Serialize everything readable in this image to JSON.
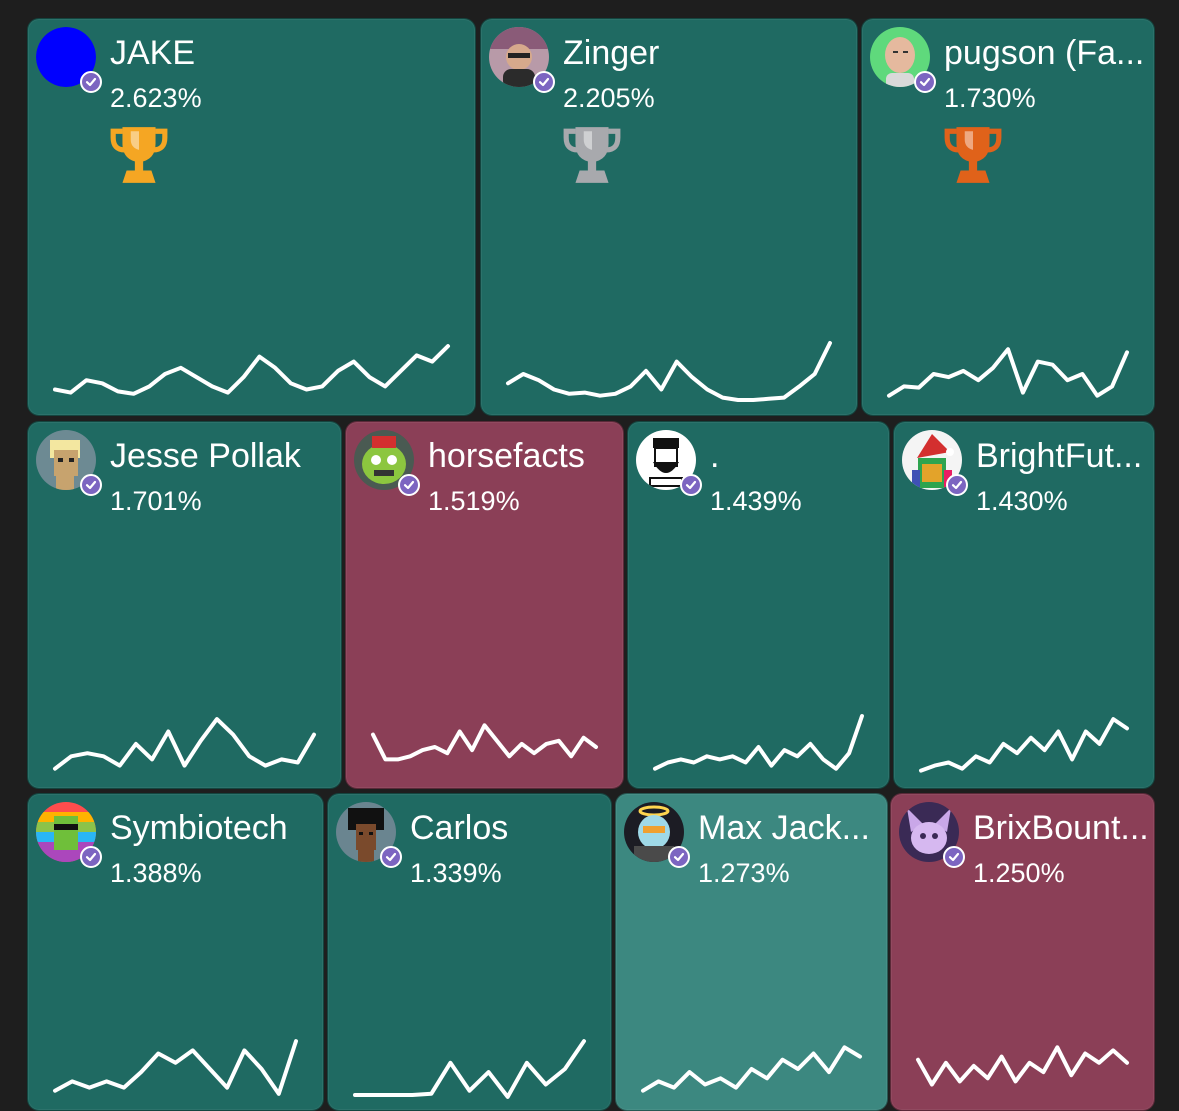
{
  "colors": {
    "background": "#1e1e1e",
    "positive_tile": "#1f6a62",
    "negative_tile": "#8b3f57",
    "highlight_tile": "#3c8880",
    "verified_badge": "#7c65c1",
    "trophy_gold": "#f5a623",
    "trophy_silver": "#a8a9ad",
    "trophy_bronze": "#e0621a"
  },
  "tiles": [
    {
      "name": "JAKE",
      "percent": "2.623%",
      "trend": "up",
      "trophy": "gold-trophy-icon",
      "avatar": "blue-circle-avatar",
      "spark": [
        0.25,
        0.2,
        0.4,
        0.35,
        0.22,
        0.18,
        0.3,
        0.5,
        0.6,
        0.45,
        0.3,
        0.2,
        0.45,
        0.78,
        0.6,
        0.35,
        0.25,
        0.3,
        0.55,
        0.7,
        0.45,
        0.3,
        0.55,
        0.8,
        0.7,
        0.95
      ]
    },
    {
      "name": "Zinger",
      "percent": "2.205%",
      "trend": "up",
      "trophy": "silver-trophy-icon",
      "avatar": "man-photo-avatar",
      "spark": [
        0.35,
        0.5,
        0.4,
        0.25,
        0.18,
        0.2,
        0.15,
        0.18,
        0.3,
        0.55,
        0.25,
        0.7,
        0.45,
        0.25,
        0.12,
        0.08,
        0.08,
        0.1,
        0.12,
        0.3,
        0.5,
        1.0
      ]
    },
    {
      "name": "pugson (Fa...",
      "percent": "1.730%",
      "trend": "up",
      "trophy": "bronze-trophy-icon",
      "avatar": "bald-man-avatar",
      "spark": [
        0.15,
        0.3,
        0.28,
        0.5,
        0.45,
        0.55,
        0.4,
        0.6,
        0.9,
        0.2,
        0.7,
        0.65,
        0.4,
        0.5,
        0.15,
        0.3,
        0.85
      ]
    },
    {
      "name": "Jesse Pollak",
      "percent": "1.701%",
      "trend": "up",
      "avatar": "pixel-punk-avatar",
      "spark": [
        0.15,
        0.35,
        0.4,
        0.35,
        0.2,
        0.55,
        0.3,
        0.75,
        0.2,
        0.6,
        0.95,
        0.7,
        0.35,
        0.2,
        0.3,
        0.25,
        0.7
      ]
    },
    {
      "name": "horsefacts",
      "percent": "1.519%",
      "trend": "down",
      "avatar": "green-monster-avatar",
      "spark": [
        0.7,
        0.3,
        0.3,
        0.35,
        0.45,
        0.5,
        0.4,
        0.75,
        0.45,
        0.85,
        0.6,
        0.35,
        0.55,
        0.4,
        0.55,
        0.6,
        0.35,
        0.65,
        0.5
      ]
    },
    {
      "name": ".",
      "percent": "1.439%",
      "trend": "up",
      "avatar": "bearded-man-sketch-avatar",
      "spark": [
        0.15,
        0.25,
        0.3,
        0.25,
        0.35,
        0.3,
        0.35,
        0.25,
        0.5,
        0.2,
        0.45,
        0.35,
        0.55,
        0.3,
        0.15,
        0.4,
        1.0
      ]
    },
    {
      "name": "BrightFut...",
      "percent": "1.430%",
      "trend": "up",
      "avatar": "santa-hat-avatar",
      "spark": [
        0.12,
        0.2,
        0.25,
        0.15,
        0.35,
        0.25,
        0.55,
        0.4,
        0.65,
        0.45,
        0.75,
        0.3,
        0.75,
        0.55,
        0.95,
        0.8
      ]
    },
    {
      "name": "Symbiotech",
      "percent": "1.388%",
      "trend": "up",
      "avatar": "rainbow-punk-avatar",
      "spark": [
        0.15,
        0.3,
        0.2,
        0.3,
        0.2,
        0.45,
        0.75,
        0.6,
        0.8,
        0.5,
        0.2,
        0.8,
        0.5,
        0.1,
        0.95
      ]
    },
    {
      "name": "Carlos",
      "percent": "1.339%",
      "trend": "up",
      "avatar": "afro-punk-avatar",
      "spark": [
        0.08,
        0.08,
        0.08,
        0.08,
        0.1,
        0.6,
        0.15,
        0.45,
        0.05,
        0.6,
        0.25,
        0.5,
        0.95
      ]
    },
    {
      "name": "Max Jack...",
      "percent": "1.273%",
      "trend": "up",
      "avatar": "halo-skull-avatar",
      "spark": [
        0.15,
        0.3,
        0.2,
        0.45,
        0.25,
        0.35,
        0.2,
        0.5,
        0.35,
        0.65,
        0.5,
        0.75,
        0.45,
        0.85,
        0.7
      ]
    },
    {
      "name": "BrixBount...",
      "percent": "1.250%",
      "trend": "down",
      "avatar": "purple-creature-avatar",
      "spark": [
        0.65,
        0.25,
        0.6,
        0.3,
        0.55,
        0.35,
        0.7,
        0.3,
        0.6,
        0.45,
        0.85,
        0.4,
        0.75,
        0.6,
        0.8,
        0.6
      ]
    }
  ]
}
